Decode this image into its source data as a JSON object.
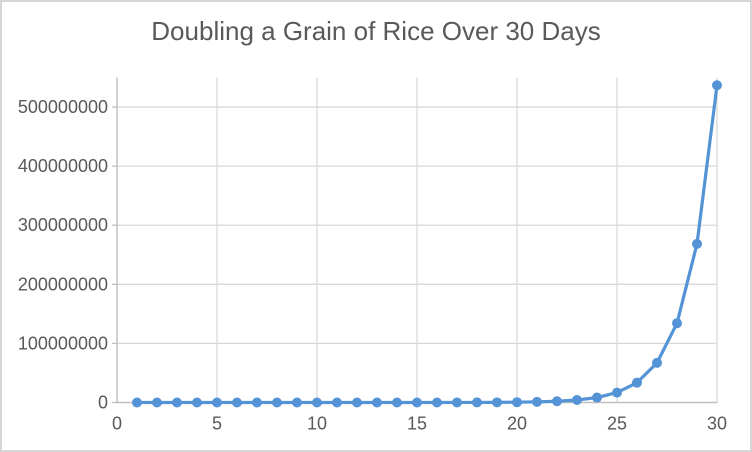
{
  "chart_data": {
    "type": "line",
    "title": "Doubling a Grain of Rice Over 30 Days",
    "xlabel": "",
    "ylabel": "",
    "legend": false,
    "grid": true,
    "marker": "circle",
    "x": [
      1,
      2,
      3,
      4,
      5,
      6,
      7,
      8,
      9,
      10,
      11,
      12,
      13,
      14,
      15,
      16,
      17,
      18,
      19,
      20,
      21,
      22,
      23,
      24,
      25,
      26,
      27,
      28,
      29,
      30
    ],
    "values": [
      1,
      2,
      4,
      8,
      16,
      32,
      64,
      128,
      256,
      512,
      1024,
      2048,
      4096,
      8192,
      16384,
      32768,
      65536,
      131072,
      262144,
      524288,
      1048576,
      2097152,
      4194304,
      8388608,
      16777216,
      33554432,
      67108864,
      134217728,
      268435456,
      536870912
    ],
    "xlim": [
      0,
      30
    ],
    "ylim": [
      0,
      550000000
    ],
    "x_ticks": [
      0,
      5,
      10,
      15,
      20,
      25,
      30
    ],
    "y_ticks": [
      0,
      100000000,
      200000000,
      300000000,
      400000000,
      500000000
    ],
    "colors": {
      "line": "#5494d6",
      "marker": "#5494d6",
      "gridline": "#d9d9d9",
      "axis": "#bfbfbf",
      "text": "#595959",
      "background": "#ffffff",
      "border": "#d6d6d6"
    }
  }
}
